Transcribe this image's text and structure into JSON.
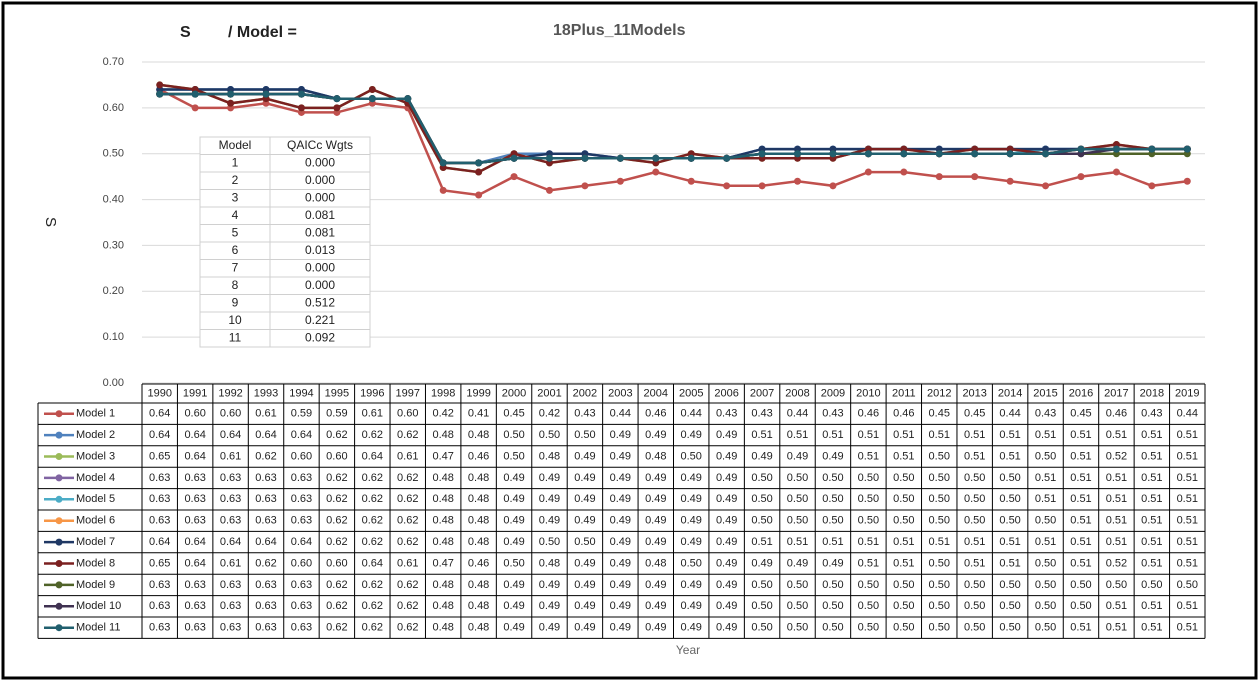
{
  "chart_data": {
    "type": "line",
    "title_var": "S",
    "title_sep": "/ Model =",
    "title_set": "18Plus_11Models",
    "ylabel": "S",
    "xlabel": "Year",
    "grid": true,
    "ylim": [
      0,
      0.7
    ],
    "yticks": [
      {
        "value": 0,
        "label": "0.00"
      },
      {
        "value": 0.1,
        "label": "0.10"
      },
      {
        "value": 0.2,
        "label": "0.20"
      },
      {
        "value": 0.3,
        "label": "0.30"
      },
      {
        "value": 0.4,
        "label": "0.40"
      },
      {
        "value": 0.5,
        "label": "0.50"
      },
      {
        "value": 0.6,
        "label": "0.60"
      },
      {
        "value": 0.7,
        "label": "0.70"
      }
    ],
    "categories": [
      "1990",
      "1991",
      "1992",
      "1993",
      "1994",
      "1995",
      "1996",
      "1997",
      "1998",
      "1999",
      "2000",
      "2001",
      "2002",
      "2003",
      "2004",
      "2005",
      "2006",
      "2007",
      "2008",
      "2009",
      "2010",
      "2011",
      "2012",
      "2013",
      "2014",
      "2015",
      "2016",
      "2017",
      "2018",
      "2019"
    ],
    "series": [
      {
        "name": "Model 1",
        "color": "#c0504d",
        "values": [
          0.64,
          0.6,
          0.6,
          0.61,
          0.59,
          0.59,
          0.61,
          0.6,
          0.42,
          0.41,
          0.45,
          0.42,
          0.43,
          0.44,
          0.46,
          0.44,
          0.43,
          0.43,
          0.44,
          0.43,
          0.46,
          0.46,
          0.45,
          0.45,
          0.44,
          0.43,
          0.45,
          0.46,
          0.43,
          0.44
        ],
        "value_labels": [
          "0.64",
          "0.60",
          "0.60",
          "0.61",
          "0.59",
          "0.59",
          "0.61",
          "0.60",
          "0.42",
          "0.41",
          "0.45",
          "0.42",
          "0.43",
          "0.44",
          "0.46",
          "0.44",
          "0.43",
          "0.43",
          "0.44",
          "0.43",
          "0.46",
          "0.46",
          "0.45",
          "0.45",
          "0.44",
          "0.43",
          "0.45",
          "0.46",
          "0.43",
          "0.44"
        ]
      },
      {
        "name": "Model 2",
        "color": "#4f81bd",
        "values": [
          0.64,
          0.64,
          0.64,
          0.64,
          0.64,
          0.62,
          0.62,
          0.62,
          0.48,
          0.48,
          0.5,
          0.5,
          0.5,
          0.49,
          0.49,
          0.49,
          0.49,
          0.51,
          0.51,
          0.51,
          0.51,
          0.51,
          0.51,
          0.51,
          0.51,
          0.51,
          0.51,
          0.51,
          0.51,
          0.51
        ],
        "value_labels": [
          "0.64",
          "0.64",
          "0.64",
          "0.64",
          "0.64",
          "0.62",
          "0.62",
          "0.62",
          "0.48",
          "0.48",
          "0.50",
          "0.50",
          "0.50",
          "0.49",
          "0.49",
          "0.49",
          "0.49",
          "0.51",
          "0.51",
          "0.51",
          "0.51",
          "0.51",
          "0.51",
          "0.51",
          "0.51",
          "0.51",
          "0.51",
          "0.51",
          "0.51",
          "0.51"
        ]
      },
      {
        "name": "Model 3",
        "color": "#9bbb59",
        "values": [
          0.65,
          0.64,
          0.61,
          0.62,
          0.6,
          0.6,
          0.64,
          0.61,
          0.47,
          0.46,
          0.5,
          0.48,
          0.49,
          0.49,
          0.48,
          0.5,
          0.49,
          0.49,
          0.49,
          0.49,
          0.51,
          0.51,
          0.5,
          0.51,
          0.51,
          0.5,
          0.51,
          0.52,
          0.51,
          0.51
        ],
        "value_labels": [
          "0.65",
          "0.64",
          "0.61",
          "0.62",
          "0.60",
          "0.60",
          "0.64",
          "0.61",
          "0.47",
          "0.46",
          "0.50",
          "0.48",
          "0.49",
          "0.49",
          "0.48",
          "0.50",
          "0.49",
          "0.49",
          "0.49",
          "0.49",
          "0.51",
          "0.51",
          "0.50",
          "0.51",
          "0.51",
          "0.50",
          "0.51",
          "0.52",
          "0.51",
          "0.51"
        ]
      },
      {
        "name": "Model 4",
        "color": "#8064a2",
        "values": [
          0.63,
          0.63,
          0.63,
          0.63,
          0.63,
          0.62,
          0.62,
          0.62,
          0.48,
          0.48,
          0.49,
          0.49,
          0.49,
          0.49,
          0.49,
          0.49,
          0.49,
          0.5,
          0.5,
          0.5,
          0.5,
          0.5,
          0.5,
          0.5,
          0.5,
          0.51,
          0.51,
          0.51,
          0.51,
          0.51
        ],
        "value_labels": [
          "0.63",
          "0.63",
          "0.63",
          "0.63",
          "0.63",
          "0.62",
          "0.62",
          "0.62",
          "0.48",
          "0.48",
          "0.49",
          "0.49",
          "0.49",
          "0.49",
          "0.49",
          "0.49",
          "0.49",
          "0.50",
          "0.50",
          "0.50",
          "0.50",
          "0.50",
          "0.50",
          "0.50",
          "0.50",
          "0.51",
          "0.51",
          "0.51",
          "0.51",
          "0.51"
        ]
      },
      {
        "name": "Model 5",
        "color": "#4bacc6",
        "values": [
          0.63,
          0.63,
          0.63,
          0.63,
          0.63,
          0.62,
          0.62,
          0.62,
          0.48,
          0.48,
          0.49,
          0.49,
          0.49,
          0.49,
          0.49,
          0.49,
          0.49,
          0.5,
          0.5,
          0.5,
          0.5,
          0.5,
          0.5,
          0.5,
          0.5,
          0.51,
          0.51,
          0.51,
          0.51,
          0.51
        ],
        "value_labels": [
          "0.63",
          "0.63",
          "0.63",
          "0.63",
          "0.63",
          "0.62",
          "0.62",
          "0.62",
          "0.48",
          "0.48",
          "0.49",
          "0.49",
          "0.49",
          "0.49",
          "0.49",
          "0.49",
          "0.49",
          "0.50",
          "0.50",
          "0.50",
          "0.50",
          "0.50",
          "0.50",
          "0.50",
          "0.50",
          "0.51",
          "0.51",
          "0.51",
          "0.51",
          "0.51"
        ]
      },
      {
        "name": "Model 6",
        "color": "#f79646",
        "values": [
          0.63,
          0.63,
          0.63,
          0.63,
          0.63,
          0.62,
          0.62,
          0.62,
          0.48,
          0.48,
          0.49,
          0.49,
          0.49,
          0.49,
          0.49,
          0.49,
          0.49,
          0.5,
          0.5,
          0.5,
          0.5,
          0.5,
          0.5,
          0.5,
          0.5,
          0.5,
          0.51,
          0.51,
          0.51,
          0.51
        ],
        "value_labels": [
          "0.63",
          "0.63",
          "0.63",
          "0.63",
          "0.63",
          "0.62",
          "0.62",
          "0.62",
          "0.48",
          "0.48",
          "0.49",
          "0.49",
          "0.49",
          "0.49",
          "0.49",
          "0.49",
          "0.49",
          "0.50",
          "0.50",
          "0.50",
          "0.50",
          "0.50",
          "0.50",
          "0.50",
          "0.50",
          "0.50",
          "0.51",
          "0.51",
          "0.51",
          "0.51"
        ]
      },
      {
        "name": "Model 7",
        "color": "#1f3864",
        "values": [
          0.64,
          0.64,
          0.64,
          0.64,
          0.64,
          0.62,
          0.62,
          0.62,
          0.48,
          0.48,
          0.49,
          0.5,
          0.5,
          0.49,
          0.49,
          0.49,
          0.49,
          0.51,
          0.51,
          0.51,
          0.51,
          0.51,
          0.51,
          0.51,
          0.51,
          0.51,
          0.51,
          0.51,
          0.51,
          0.51
        ],
        "value_labels": [
          "0.64",
          "0.64",
          "0.64",
          "0.64",
          "0.64",
          "0.62",
          "0.62",
          "0.62",
          "0.48",
          "0.48",
          "0.49",
          "0.50",
          "0.50",
          "0.49",
          "0.49",
          "0.49",
          "0.49",
          "0.51",
          "0.51",
          "0.51",
          "0.51",
          "0.51",
          "0.51",
          "0.51",
          "0.51",
          "0.51",
          "0.51",
          "0.51",
          "0.51",
          "0.51"
        ]
      },
      {
        "name": "Model 8",
        "color": "#7b2020",
        "values": [
          0.65,
          0.64,
          0.61,
          0.62,
          0.6,
          0.6,
          0.64,
          0.61,
          0.47,
          0.46,
          0.5,
          0.48,
          0.49,
          0.49,
          0.48,
          0.5,
          0.49,
          0.49,
          0.49,
          0.49,
          0.51,
          0.51,
          0.5,
          0.51,
          0.51,
          0.5,
          0.51,
          0.52,
          0.51,
          0.51
        ],
        "value_labels": [
          "0.65",
          "0.64",
          "0.61",
          "0.62",
          "0.60",
          "0.60",
          "0.64",
          "0.61",
          "0.47",
          "0.46",
          "0.50",
          "0.48",
          "0.49",
          "0.49",
          "0.48",
          "0.50",
          "0.49",
          "0.49",
          "0.49",
          "0.49",
          "0.51",
          "0.51",
          "0.50",
          "0.51",
          "0.51",
          "0.50",
          "0.51",
          "0.52",
          "0.51",
          "0.51"
        ]
      },
      {
        "name": "Model 9",
        "color": "#4f6228",
        "values": [
          0.63,
          0.63,
          0.63,
          0.63,
          0.63,
          0.62,
          0.62,
          0.62,
          0.48,
          0.48,
          0.49,
          0.49,
          0.49,
          0.49,
          0.49,
          0.49,
          0.49,
          0.5,
          0.5,
          0.5,
          0.5,
          0.5,
          0.5,
          0.5,
          0.5,
          0.5,
          0.5,
          0.5,
          0.5,
          0.5
        ],
        "value_labels": [
          "0.63",
          "0.63",
          "0.63",
          "0.63",
          "0.63",
          "0.62",
          "0.62",
          "0.62",
          "0.48",
          "0.48",
          "0.49",
          "0.49",
          "0.49",
          "0.49",
          "0.49",
          "0.49",
          "0.49",
          "0.50",
          "0.50",
          "0.50",
          "0.50",
          "0.50",
          "0.50",
          "0.50",
          "0.50",
          "0.50",
          "0.50",
          "0.50",
          "0.50",
          "0.50"
        ]
      },
      {
        "name": "Model 10",
        "color": "#3f3151",
        "values": [
          0.63,
          0.63,
          0.63,
          0.63,
          0.63,
          0.62,
          0.62,
          0.62,
          0.48,
          0.48,
          0.49,
          0.49,
          0.49,
          0.49,
          0.49,
          0.49,
          0.49,
          0.5,
          0.5,
          0.5,
          0.5,
          0.5,
          0.5,
          0.5,
          0.5,
          0.5,
          0.5,
          0.51,
          0.51,
          0.51
        ],
        "value_labels": [
          "0.63",
          "0.63",
          "0.63",
          "0.63",
          "0.63",
          "0.62",
          "0.62",
          "0.62",
          "0.48",
          "0.48",
          "0.49",
          "0.49",
          "0.49",
          "0.49",
          "0.49",
          "0.49",
          "0.49",
          "0.50",
          "0.50",
          "0.50",
          "0.50",
          "0.50",
          "0.50",
          "0.50",
          "0.50",
          "0.50",
          "0.50",
          "0.51",
          "0.51",
          "0.51"
        ]
      },
      {
        "name": "Model 11",
        "color": "#215f6e",
        "values": [
          0.63,
          0.63,
          0.63,
          0.63,
          0.63,
          0.62,
          0.62,
          0.62,
          0.48,
          0.48,
          0.49,
          0.49,
          0.49,
          0.49,
          0.49,
          0.49,
          0.49,
          0.5,
          0.5,
          0.5,
          0.5,
          0.5,
          0.5,
          0.5,
          0.5,
          0.5,
          0.51,
          0.51,
          0.51,
          0.51
        ],
        "value_labels": [
          "0.63",
          "0.63",
          "0.63",
          "0.63",
          "0.63",
          "0.62",
          "0.62",
          "0.62",
          "0.48",
          "0.48",
          "0.49",
          "0.49",
          "0.49",
          "0.49",
          "0.49",
          "0.49",
          "0.49",
          "0.50",
          "0.50",
          "0.50",
          "0.50",
          "0.50",
          "0.50",
          "0.50",
          "0.50",
          "0.50",
          "0.51",
          "0.51",
          "0.51",
          "0.51"
        ]
      }
    ],
    "weights_table": {
      "header": [
        "Model",
        "QAICc Wgts"
      ],
      "rows": [
        [
          "1",
          "0.000"
        ],
        [
          "2",
          "0.000"
        ],
        [
          "3",
          "0.000"
        ],
        [
          "4",
          "0.081"
        ],
        [
          "5",
          "0.081"
        ],
        [
          "6",
          "0.013"
        ],
        [
          "7",
          "0.000"
        ],
        [
          "8",
          "0.000"
        ],
        [
          "9",
          "0.512"
        ],
        [
          "10",
          "0.221"
        ],
        [
          "11",
          "0.092"
        ]
      ]
    }
  }
}
